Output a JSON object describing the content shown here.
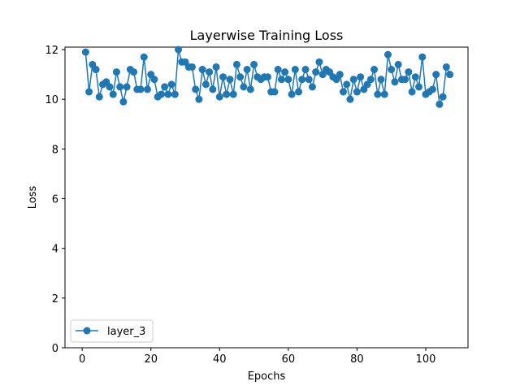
{
  "chart_data": {
    "type": "line",
    "title": "Layerwise Training Loss",
    "xlabel": "Epochs",
    "ylabel": "Loss",
    "xlim": [
      -5,
      112.3
    ],
    "ylim": [
      0,
      12.1
    ],
    "xticks": [
      0,
      20,
      40,
      60,
      80,
      100
    ],
    "yticks": [
      0,
      2,
      4,
      6,
      8,
      10,
      12
    ],
    "legend_position": "lower-left",
    "grid": false,
    "series": [
      {
        "name": "layer_3",
        "color": "#1f77b4",
        "marker": "circle",
        "x": [
          1,
          2,
          3,
          4,
          5,
          6,
          7,
          8,
          9,
          10,
          11,
          12,
          13,
          14,
          15,
          16,
          17,
          18,
          19,
          20,
          21,
          22,
          23,
          24,
          25,
          26,
          27,
          28,
          29,
          30,
          31,
          32,
          33,
          34,
          35,
          36,
          37,
          38,
          39,
          40,
          41,
          42,
          43,
          44,
          45,
          46,
          47,
          48,
          49,
          50,
          51,
          52,
          53,
          54,
          55,
          56,
          57,
          58,
          59,
          60,
          61,
          62,
          63,
          64,
          65,
          66,
          67,
          68,
          69,
          70,
          71,
          72,
          73,
          74,
          75,
          76,
          77,
          78,
          79,
          80,
          81,
          82,
          83,
          84,
          85,
          86,
          87,
          88,
          89,
          90,
          91,
          92,
          93,
          94,
          95,
          96,
          97,
          98,
          99,
          100,
          101,
          102,
          103,
          104,
          105,
          106,
          107
        ],
        "y": [
          11.9,
          10.3,
          11.4,
          11.2,
          10.1,
          10.6,
          10.7,
          10.5,
          10.2,
          11.1,
          10.5,
          9.9,
          10.5,
          11.2,
          11.1,
          10.4,
          10.4,
          11.7,
          10.4,
          11.0,
          10.8,
          10.1,
          10.2,
          10.5,
          10.2,
          10.6,
          10.2,
          12.0,
          11.5,
          11.5,
          11.3,
          11.3,
          10.4,
          10.0,
          11.2,
          10.6,
          11.1,
          10.4,
          11.3,
          10.1,
          10.9,
          10.2,
          10.8,
          10.2,
          11.4,
          10.9,
          10.5,
          11.2,
          10.4,
          11.4,
          10.9,
          10.8,
          10.9,
          10.9,
          10.3,
          10.3,
          11.2,
          10.8,
          11.1,
          10.8,
          10.2,
          11.2,
          10.3,
          10.8,
          11.2,
          10.8,
          10.5,
          11.1,
          11.5,
          11.0,
          11.2,
          11.1,
          10.9,
          10.8,
          11.0,
          10.3,
          10.6,
          10.0,
          10.8,
          10.3,
          10.9,
          10.4,
          10.6,
          10.8,
          11.2,
          10.2,
          10.8,
          10.2,
          11.8,
          11.2,
          10.7,
          11.4,
          10.8,
          10.8,
          11.1,
          10.3,
          10.9,
          10.5,
          11.7,
          10.2,
          10.3,
          10.4,
          11.0,
          9.8,
          10.1,
          11.3,
          11.0
        ]
      }
    ]
  }
}
